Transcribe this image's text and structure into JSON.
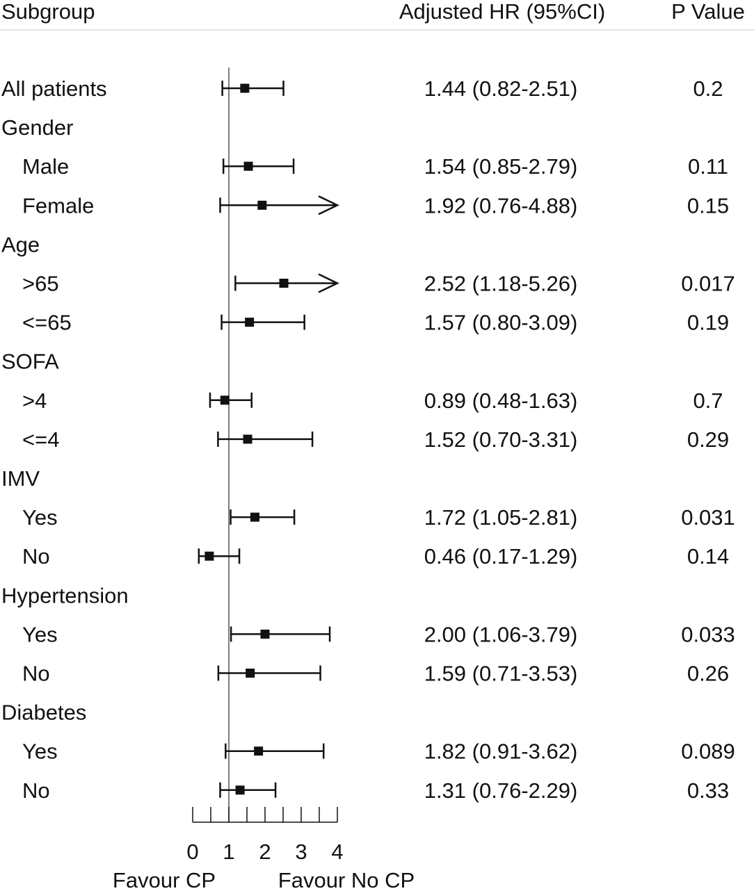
{
  "chart_data": {
    "type": "forest",
    "headers": {
      "subgroup": "Subgroup",
      "hr": "Adjusted HR (95%CI)",
      "p": "P Value"
    },
    "reference_line": 1,
    "xlim": [
      0,
      4
    ],
    "x_ticks_major": [
      "0",
      "1",
      "2",
      "3",
      "4"
    ],
    "x_ticks_minor": [
      0.5,
      1.5,
      2.5,
      3.5
    ],
    "xlabel_left": "Favour CP",
    "xlabel_right": "Favour No CP",
    "rows": [
      {
        "label": "All patients",
        "indent": false,
        "hr": 1.44,
        "lo": 0.82,
        "hi": 2.51,
        "hr_text": "1.44 (0.82-2.51)",
        "p": "0.2"
      },
      {
        "label": "Gender",
        "indent": false,
        "header": true
      },
      {
        "label": "Male",
        "indent": true,
        "hr": 1.54,
        "lo": 0.85,
        "hi": 2.79,
        "hr_text": "1.54 (0.85-2.79)",
        "p": "0.11"
      },
      {
        "label": "Female",
        "indent": true,
        "hr": 1.92,
        "lo": 0.76,
        "hi": 4.88,
        "hr_text": "1.92 (0.76-4.88)",
        "p": "0.15"
      },
      {
        "label": "Age",
        "indent": false,
        "header": true
      },
      {
        "label": ">65",
        "indent": true,
        "hr": 2.52,
        "lo": 1.18,
        "hi": 5.26,
        "hr_text": "2.52 (1.18-5.26)",
        "p": "0.017"
      },
      {
        "label": "<=65",
        "indent": true,
        "hr": 1.57,
        "lo": 0.8,
        "hi": 3.09,
        "hr_text": "1.57 (0.80-3.09)",
        "p": "0.19"
      },
      {
        "label": "SOFA",
        "indent": false,
        "header": true
      },
      {
        "label": ">4",
        "indent": true,
        "hr": 0.89,
        "lo": 0.48,
        "hi": 1.63,
        "hr_text": "0.89 (0.48-1.63)",
        "p": "0.7"
      },
      {
        "label": "<=4",
        "indent": true,
        "hr": 1.52,
        "lo": 0.7,
        "hi": 3.31,
        "hr_text": "1.52 (0.70-3.31)",
        "p": "0.29"
      },
      {
        "label": "IMV",
        "indent": false,
        "header": true
      },
      {
        "label": "Yes",
        "indent": true,
        "hr": 1.72,
        "lo": 1.05,
        "hi": 2.81,
        "hr_text": "1.72 (1.05-2.81)",
        "p": "0.031"
      },
      {
        "label": "No",
        "indent": true,
        "hr": 0.46,
        "lo": 0.17,
        "hi": 1.29,
        "hr_text": "0.46 (0.17-1.29)",
        "p": "0.14"
      },
      {
        "label": "Hypertension",
        "indent": false,
        "header": true
      },
      {
        "label": "Yes",
        "indent": true,
        "hr": 2.0,
        "lo": 1.06,
        "hi": 3.79,
        "hr_text": "2.00 (1.06-3.79)",
        "p": "0.033"
      },
      {
        "label": "No",
        "indent": true,
        "hr": 1.59,
        "lo": 0.71,
        "hi": 3.53,
        "hr_text": "1.59 (0.71-3.53)",
        "p": "0.26"
      },
      {
        "label": "Diabetes",
        "indent": false,
        "header": true
      },
      {
        "label": "Yes",
        "indent": true,
        "hr": 1.82,
        "lo": 0.91,
        "hi": 3.62,
        "hr_text": "1.82 (0.91-3.62)",
        "p": "0.089"
      },
      {
        "label": "No",
        "indent": true,
        "hr": 1.31,
        "lo": 0.76,
        "hi": 2.29,
        "hr_text": "1.31 (0.76-2.29)",
        "p": "0.33"
      }
    ]
  }
}
